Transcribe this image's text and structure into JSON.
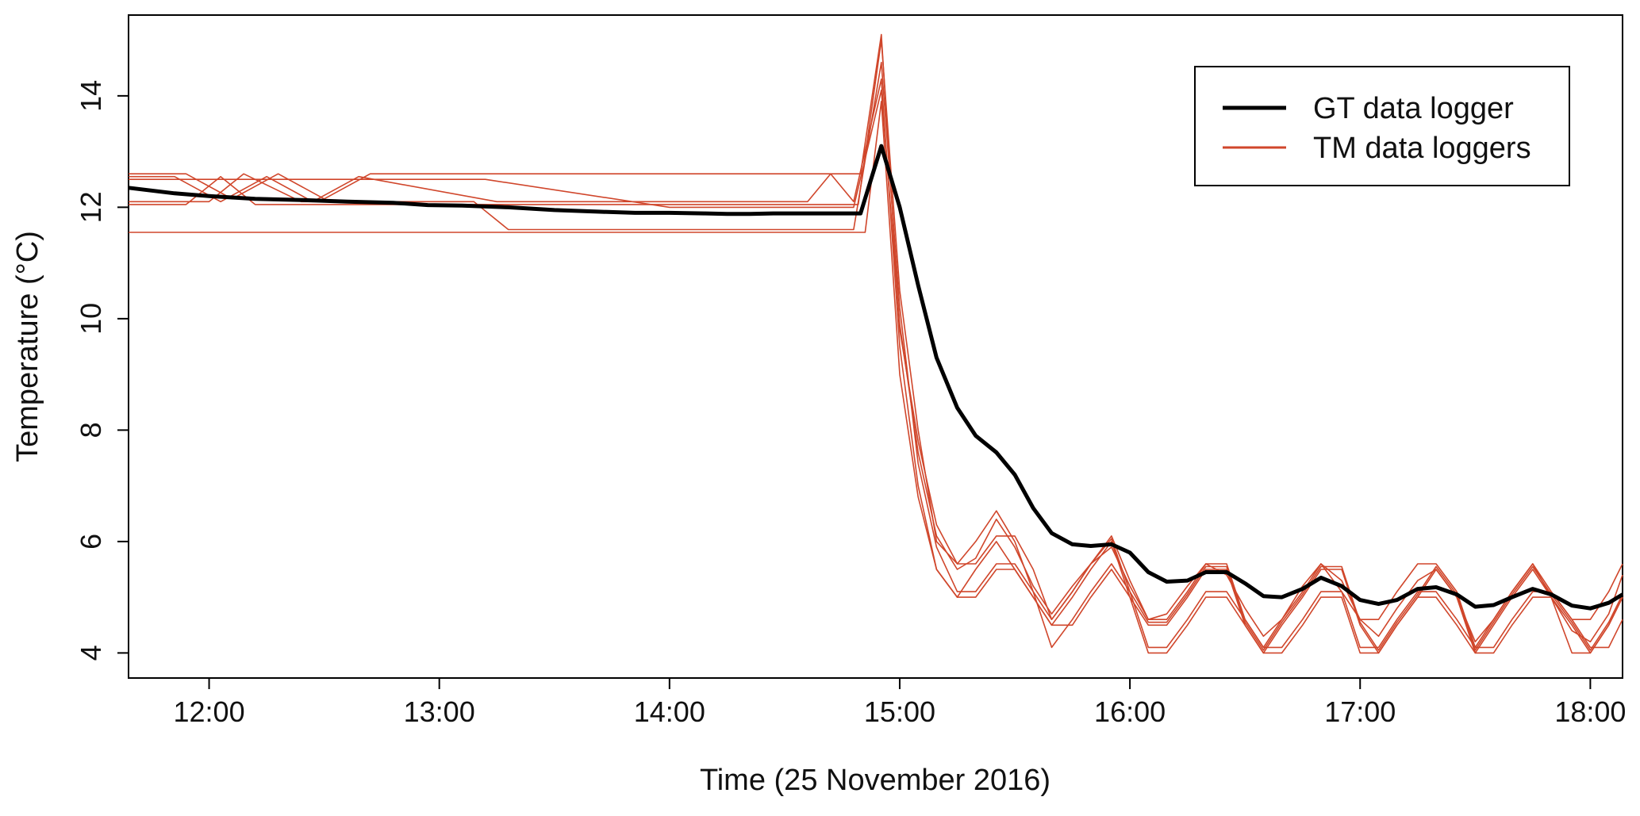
{
  "chart_data": {
    "type": "line",
    "title": "",
    "xlabel": "Time (25 November 2016)",
    "ylabel": "Temperature (°C)",
    "x_unit": "hours (time of day)",
    "xlim": [
      11.65,
      18.14
    ],
    "ylim": [
      3.55,
      15.45
    ],
    "x_ticks": [
      12,
      13,
      14,
      15,
      16,
      17,
      18
    ],
    "x_tick_labels": [
      "12:00",
      "13:00",
      "14:00",
      "15:00",
      "16:00",
      "17:00",
      "18:00"
    ],
    "y_ticks": [
      4,
      6,
      8,
      10,
      12,
      14
    ],
    "y_tick_labels": [
      "4",
      "6",
      "8",
      "10",
      "12",
      "14"
    ],
    "grid": false,
    "legend_position": "top-right",
    "colors": {
      "gt": "#000000",
      "tm": "#d0462b"
    },
    "legend": [
      {
        "label": "GT data logger",
        "color": "#000000"
      },
      {
        "label": "TM data loggers",
        "color": "#d0462b"
      }
    ],
    "series": [
      {
        "name": "GT data logger",
        "color": "#000000",
        "x": [
          11.65,
          11.75,
          11.85,
          12.0,
          12.2,
          12.4,
          12.6,
          12.8,
          12.95,
          13.1,
          13.3,
          13.5,
          13.7,
          13.85,
          14.0,
          14.15,
          14.25,
          14.35,
          14.45,
          14.6,
          14.75,
          14.83,
          14.92,
          15.0,
          15.08,
          15.16,
          15.25,
          15.33,
          15.42,
          15.5,
          15.58,
          15.66,
          15.75,
          15.83,
          15.92,
          16.0,
          16.08,
          16.16,
          16.25,
          16.33,
          16.42,
          16.5,
          16.58,
          16.66,
          16.75,
          16.83,
          16.92,
          17.0,
          17.08,
          17.16,
          17.25,
          17.33,
          17.42,
          17.5,
          17.58,
          17.66,
          17.75,
          17.83,
          17.92,
          18.0,
          18.08,
          18.14
        ],
        "y": [
          12.35,
          12.3,
          12.25,
          12.2,
          12.15,
          12.13,
          12.1,
          12.08,
          12.04,
          12.03,
          12.0,
          11.95,
          11.92,
          11.9,
          11.9,
          11.89,
          11.88,
          11.88,
          11.89,
          11.89,
          11.89,
          11.89,
          13.1,
          12.0,
          10.6,
          9.3,
          8.4,
          7.9,
          7.6,
          7.2,
          6.6,
          6.15,
          5.95,
          5.92,
          5.95,
          5.8,
          5.45,
          5.28,
          5.3,
          5.45,
          5.45,
          5.25,
          5.02,
          5.0,
          5.15,
          5.35,
          5.2,
          4.95,
          4.88,
          4.95,
          5.15,
          5.18,
          5.05,
          4.83,
          4.86,
          5.0,
          5.15,
          5.05,
          4.85,
          4.8,
          4.9,
          5.05
        ]
      },
      {
        "name": "TM data loggers",
        "color": "#d0462b",
        "x": [
          11.65,
          11.9,
          12.1,
          12.3,
          12.5,
          12.7,
          13.2,
          14.75,
          14.83,
          14.92,
          15.0,
          15.08,
          15.16,
          15.25,
          15.33,
          15.42,
          15.5,
          15.58,
          15.66,
          15.75,
          15.83,
          15.92,
          16.0,
          16.08,
          16.16,
          16.25,
          16.33,
          16.42,
          16.5,
          16.58,
          16.66,
          16.75,
          16.83,
          16.92,
          17.0,
          17.08,
          17.16,
          17.25,
          17.33,
          17.42,
          17.5,
          17.58,
          17.66,
          17.75,
          17.83,
          17.92,
          18.0,
          18.08,
          18.14
        ],
        "y": [
          12.6,
          12.6,
          12.15,
          12.6,
          12.15,
          12.6,
          12.6,
          12.6,
          12.6,
          15.1,
          9.8,
          7.8,
          6.3,
          5.6,
          5.6,
          6.1,
          6.1,
          5.5,
          4.6,
          5.1,
          5.6,
          6.1,
          5.3,
          4.6,
          4.6,
          5.1,
          5.6,
          5.6,
          4.6,
          4.1,
          4.6,
          5.1,
          5.6,
          5.1,
          4.6,
          4.6,
          5.1,
          5.6,
          5.6,
          5.1,
          4.1,
          4.6,
          5.1,
          5.6,
          5.1,
          4.6,
          4.6,
          5.1,
          5.6
        ]
      },
      {
        "name": "TM data loggers",
        "color": "#d0462b",
        "x": [
          11.65,
          11.8,
          12.0,
          12.15,
          12.4,
          12.6,
          13.15,
          13.3,
          14.8,
          14.92,
          15.0,
          15.08,
          15.16,
          15.25,
          15.33,
          15.42,
          15.5,
          15.58,
          15.66,
          15.75,
          15.83,
          15.92,
          16.0,
          16.08,
          16.16,
          16.25,
          16.33,
          16.42,
          16.5,
          16.58,
          16.66,
          16.75,
          16.83,
          16.92,
          17.0,
          17.08,
          17.16,
          17.25,
          17.33,
          17.42,
          17.5,
          17.58,
          17.66,
          17.75,
          17.83,
          17.92,
          18.0,
          18.08,
          18.14
        ],
        "y": [
          12.1,
          12.1,
          12.1,
          12.6,
          12.1,
          12.1,
          12.1,
          11.6,
          11.6,
          14.6,
          10.2,
          7.4,
          5.9,
          5.1,
          5.1,
          5.6,
          5.6,
          5.1,
          4.1,
          4.6,
          5.1,
          5.6,
          5.1,
          4.1,
          4.1,
          4.6,
          5.1,
          5.1,
          4.6,
          4.1,
          4.1,
          4.6,
          5.1,
          5.1,
          4.1,
          4.1,
          4.6,
          5.1,
          5.1,
          4.6,
          4.1,
          4.1,
          4.6,
          5.1,
          5.1,
          4.6,
          4.1,
          4.1,
          4.6
        ]
      },
      {
        "name": "TM data loggers",
        "color": "#d0462b",
        "x": [
          11.65,
          11.85,
          12.05,
          12.25,
          12.45,
          12.65,
          13.25,
          14.6,
          14.7,
          14.8,
          14.92,
          15.0,
          15.08,
          15.16,
          15.25,
          15.33,
          15.42,
          15.5,
          15.58,
          15.66,
          15.75,
          15.83,
          15.92,
          16.0,
          16.08,
          16.16,
          16.25,
          16.33,
          16.42,
          16.5,
          16.58,
          16.66,
          16.75,
          16.83,
          16.92,
          17.0,
          17.08,
          17.16,
          17.25,
          17.33,
          17.42,
          17.5,
          17.58,
          17.66,
          17.75,
          17.83,
          17.92,
          18.0,
          18.08,
          18.14
        ],
        "y": [
          12.55,
          12.55,
          12.1,
          12.55,
          12.1,
          12.55,
          12.1,
          12.1,
          12.6,
          12.1,
          14.3,
          9.5,
          7.0,
          5.5,
          5.0,
          5.5,
          6.0,
          5.5,
          5.0,
          4.5,
          5.0,
          5.5,
          6.0,
          5.0,
          4.5,
          4.5,
          5.0,
          5.5,
          5.5,
          4.5,
          4.0,
          4.5,
          5.0,
          5.5,
          5.5,
          4.5,
          4.0,
          4.5,
          5.0,
          5.5,
          5.0,
          4.0,
          4.5,
          5.0,
          5.5,
          5.0,
          4.5,
          4.0,
          4.5,
          5.0
        ]
      },
      {
        "name": "TM data loggers",
        "color": "#d0462b",
        "x": [
          11.65,
          11.95,
          12.15,
          12.35,
          13.0,
          13.35,
          13.5,
          14.85,
          14.92,
          15.0,
          15.08,
          15.16,
          15.25,
          15.33,
          15.42,
          15.5,
          15.58,
          15.66,
          15.75,
          15.83,
          15.92,
          16.0,
          16.08,
          16.16,
          16.25,
          16.33,
          16.42,
          16.5,
          16.58,
          16.66,
          16.75,
          16.83,
          16.92,
          17.0,
          17.08,
          17.16,
          17.25,
          17.33,
          17.42,
          17.5,
          17.58,
          17.66,
          17.75,
          17.83,
          17.92,
          18.0,
          18.08,
          18.14
        ],
        "y": [
          11.55,
          11.55,
          11.55,
          11.55,
          11.55,
          11.55,
          11.55,
          11.55,
          13.9,
          9.0,
          6.8,
          5.5,
          5.0,
          5.0,
          5.5,
          5.5,
          5.0,
          4.5,
          4.5,
          5.0,
          5.5,
          5.0,
          4.0,
          4.0,
          4.5,
          5.0,
          5.0,
          4.5,
          4.0,
          4.0,
          4.5,
          5.0,
          5.0,
          4.0,
          4.0,
          4.5,
          5.0,
          5.0,
          4.5,
          4.0,
          4.0,
          4.5,
          5.0,
          5.0,
          4.0,
          4.0,
          4.5,
          5.0
        ]
      },
      {
        "name": "TM data loggers",
        "color": "#d0462b",
        "x": [
          11.65,
          11.9,
          12.05,
          12.2,
          12.35,
          12.5,
          12.7,
          13.1,
          14.82,
          14.92,
          15.0,
          15.08,
          15.16,
          15.25,
          15.33,
          15.42,
          15.5,
          15.58,
          15.66,
          15.75,
          15.83,
          15.92,
          16.0,
          16.08,
          16.16,
          16.25,
          16.33,
          16.42,
          16.5,
          16.58,
          16.66,
          16.75,
          16.83,
          16.92,
          17.0,
          17.08,
          17.16,
          17.25,
          17.33,
          17.42,
          17.5,
          17.58,
          17.66,
          17.75,
          17.83,
          17.92,
          18.0,
          18.08,
          18.14
        ],
        "y": [
          12.05,
          12.05,
          12.55,
          12.05,
          12.05,
          12.05,
          12.05,
          12.05,
          12.05,
          15.0,
          10.5,
          8.0,
          6.0,
          5.6,
          6.0,
          6.55,
          6.0,
          5.1,
          4.6,
          5.1,
          5.6,
          6.05,
          5.1,
          4.55,
          4.55,
          5.05,
          5.55,
          5.55,
          4.55,
          4.05,
          4.55,
          5.05,
          5.55,
          5.55,
          4.55,
          4.05,
          4.55,
          5.05,
          5.55,
          5.05,
          4.05,
          4.55,
          5.05,
          5.55,
          5.05,
          4.55,
          4.05,
          4.55,
          5.05
        ]
      },
      {
        "name": "TM data loggers",
        "color": "#d0462b",
        "x": [
          11.65,
          11.85,
          12.05,
          12.3,
          12.55,
          13.2,
          14.0,
          14.8,
          14.92,
          15.0,
          15.08,
          15.16,
          15.25,
          15.33,
          15.42,
          15.5,
          15.58,
          15.66,
          15.75,
          15.83,
          15.92,
          16.0,
          16.08,
          16.16,
          16.25,
          16.33,
          16.42,
          16.5,
          16.58,
          16.66,
          16.75,
          16.83,
          16.92,
          17.0,
          17.08,
          17.16,
          17.25,
          17.33,
          17.42,
          17.5,
          17.58,
          17.66,
          17.75,
          17.83,
          17.92,
          18.0,
          18.08,
          18.14
        ],
        "y": [
          12.5,
          12.5,
          12.5,
          12.5,
          12.5,
          12.5,
          12.0,
          12.0,
          14.1,
          9.9,
          7.6,
          6.1,
          5.5,
          5.7,
          6.4,
          5.9,
          5.2,
          4.7,
          5.2,
          5.6,
          5.9,
          5.2,
          4.6,
          4.7,
          5.2,
          5.6,
          5.4,
          4.8,
          4.3,
          4.6,
          5.2,
          5.6,
          5.3,
          4.6,
          4.3,
          4.8,
          5.3,
          5.5,
          5.0,
          4.2,
          4.6,
          5.1,
          5.6,
          5.0,
          4.4,
          4.2,
          4.7,
          5.4
        ]
      }
    ]
  }
}
